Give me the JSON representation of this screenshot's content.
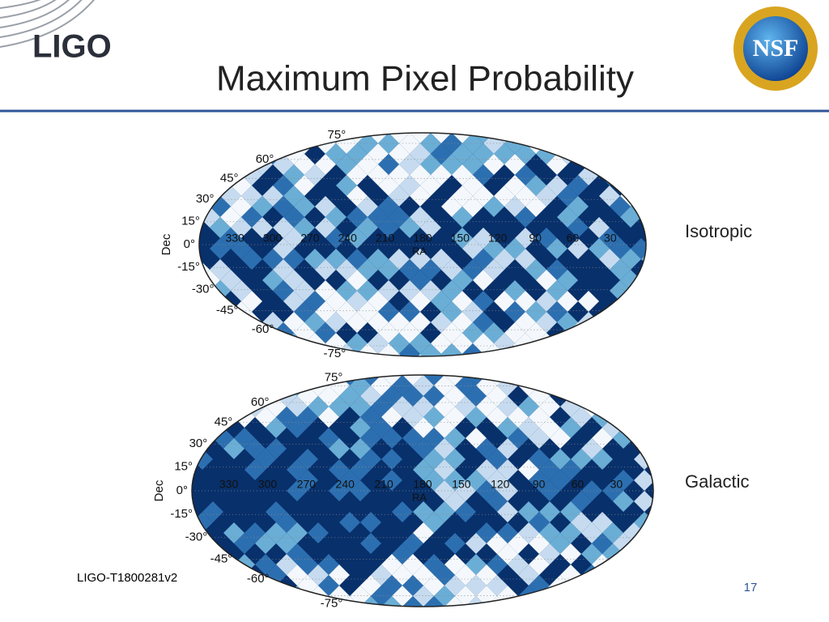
{
  "header": {
    "logo": "LIGO",
    "title": "Maximum Pixel Probability",
    "badge": "NSF"
  },
  "maps": [
    {
      "label": "Isotropic",
      "dec_label": "Dec",
      "ra_label": "RA",
      "dec_ticks": [
        "75°",
        "60°",
        "45°",
        "30°",
        "15°",
        "0°",
        "-15°",
        "-30°",
        "-45°",
        "-60°",
        "-75°"
      ],
      "ra_ticks": [
        "330",
        "300",
        "270",
        "240",
        "210",
        "180",
        "150",
        "120",
        "90",
        "60",
        "30"
      ]
    },
    {
      "label": "Galactic",
      "dec_label": "Dec",
      "ra_label": "RA",
      "dec_ticks": [
        "75°",
        "60°",
        "45°",
        "30°",
        "15°",
        "0°",
        "-15°",
        "-30°",
        "-45°",
        "-60°",
        "-75°"
      ],
      "ra_ticks": [
        "330",
        "300",
        "270",
        "240",
        "210",
        "180",
        "150",
        "120",
        "90",
        "60",
        "30"
      ]
    }
  ],
  "footer": {
    "doc_id": "LIGO-T1800281v2",
    "page": "17"
  }
}
